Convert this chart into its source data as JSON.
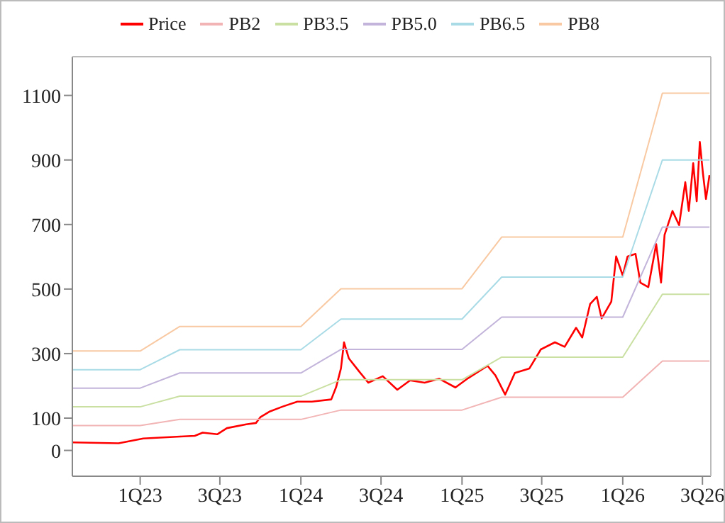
{
  "chart_data": {
    "type": "line",
    "legend": "top",
    "marker": "none",
    "line_style": "solid",
    "grid": false,
    "xlim": [
      "2022-07-31",
      "2026-07-20"
    ],
    "xticks": [
      {
        "value": "2023-01-01",
        "label": "1Q23"
      },
      {
        "value": "2023-07-01",
        "label": "3Q23"
      },
      {
        "value": "2024-01-01",
        "label": "1Q24"
      },
      {
        "value": "2024-07-01",
        "label": "3Q24"
      },
      {
        "value": "2025-01-01",
        "label": "1Q25"
      },
      {
        "value": "2025-07-01",
        "label": "3Q25"
      },
      {
        "value": "2026-01-01",
        "label": "1Q26"
      },
      {
        "value": "2026-07-01",
        "label": "3Q26"
      }
    ],
    "ylim": [
      -80,
      1220
    ],
    "yticks": [
      0,
      100,
      300,
      500,
      700,
      900,
      1100
    ],
    "x": [
      "2022-07-31",
      "2023-01-01",
      "2023-04-01",
      "2024-01-01",
      "2024-04-01",
      "2025-01-01",
      "2025-04-01",
      "2026-01-01",
      "2026-04-01",
      "2026-07-17"
    ],
    "series": [
      {
        "name": "Price",
        "color": "#ff0000",
        "x": [
          "2022-07-31",
          "2022-11-13",
          "2023-01-08",
          "2023-04-02",
          "2023-05-05",
          "2023-05-23",
          "2023-06-25",
          "2023-07-17",
          "2023-08-30",
          "2023-09-21",
          "2023-10-01",
          "2023-10-23",
          "2023-11-21",
          "2023-12-24",
          "2024-01-26",
          "2024-03-10",
          "2024-03-21",
          "2024-04-01",
          "2024-04-08",
          "2024-04-19",
          "2024-05-11",
          "2024-06-02",
          "2024-07-05",
          "2024-08-07",
          "2024-09-05",
          "2024-10-08",
          "2024-11-10",
          "2024-12-17",
          "2025-01-15",
          "2025-02-28",
          "2025-03-18",
          "2025-04-09",
          "2025-05-01",
          "2025-06-03",
          "2025-06-29",
          "2025-07-31",
          "2025-08-22",
          "2025-09-17",
          "2025-10-01",
          "2025-10-19",
          "2025-11-03",
          "2025-11-14",
          "2025-12-06",
          "2025-12-17",
          "2026-01-01",
          "2026-01-12",
          "2026-01-30",
          "2026-02-10",
          "2026-02-28",
          "2026-03-18",
          "2026-03-29",
          "2026-04-06",
          "2026-04-24",
          "2026-05-09",
          "2026-05-23",
          "2026-05-31",
          "2026-06-10",
          "2026-06-18",
          "2026-06-25",
          "2026-07-02",
          "2026-07-09",
          "2026-07-17"
        ],
        "values": [
          25,
          22,
          37,
          43,
          45,
          55,
          50,
          69,
          81,
          85,
          103,
          121,
          136,
          151,
          151,
          158,
          196,
          254,
          335,
          285,
          247,
          210,
          230,
          188,
          217,
          210,
          222,
          195,
          224,
          262,
          232,
          173,
          240,
          254,
          313,
          335,
          321,
          380,
          350,
          454,
          476,
          409,
          461,
          601,
          542,
          601,
          609,
          520,
          506,
          639,
          520,
          668,
          742,
          698,
          831,
          742,
          890,
          772,
          956,
          860,
          779,
          853
        ]
      },
      {
        "name": "PB2",
        "color": "#f2b4b4",
        "values": [
          77,
          77,
          96,
          96,
          125,
          125,
          165,
          165,
          277,
          277
        ]
      },
      {
        "name": "PB3.5",
        "color": "#c9e0a2",
        "values": [
          135,
          135,
          168,
          168,
          219,
          219,
          289,
          289,
          484,
          484
        ]
      },
      {
        "name": "PB5.0",
        "color": "#c2b4da",
        "values": [
          193,
          193,
          240,
          240,
          313,
          313,
          413,
          413,
          692,
          692
        ]
      },
      {
        "name": "PB6.5",
        "color": "#a9dbe6",
        "values": [
          250,
          250,
          312,
          312,
          407,
          407,
          537,
          537,
          900,
          900
        ]
      },
      {
        "name": "PB8",
        "color": "#f8c9a2",
        "values": [
          308,
          308,
          384,
          384,
          501,
          501,
          661,
          661,
          1107,
          1107
        ]
      }
    ]
  }
}
